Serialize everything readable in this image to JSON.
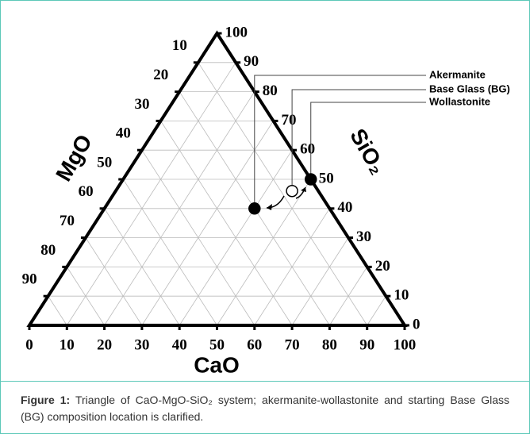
{
  "chart_data": {
    "type": "ternary",
    "axes": {
      "bottom": {
        "title": "CaO",
        "ticks": [
          0,
          10,
          20,
          30,
          40,
          50,
          60,
          70,
          80,
          90,
          100
        ]
      },
      "left": {
        "title": "MgO",
        "ticks": [
          10,
          20,
          30,
          40,
          50,
          60,
          70,
          80,
          90
        ]
      },
      "right": {
        "title": "SiO₂",
        "ticks": [
          0,
          10,
          20,
          30,
          40,
          50,
          60,
          70,
          80,
          90,
          100
        ]
      }
    },
    "grid": true,
    "color": "#000000",
    "points": [
      {
        "name": "Akermanite",
        "values": [
          40,
          20,
          40
        ],
        "filled": true
      },
      {
        "name": "Base Glass (BG)",
        "values": [
          47,
          7,
          46
        ],
        "filled": false
      },
      {
        "name": "Wollastonite",
        "values": [
          50,
          0,
          50
        ],
        "filled": true
      }
    ]
  },
  "caption": {
    "label": "Figure 1:",
    "text": "Triangle of CaO-MgO-SiO₂ system; akermanite-wollastonite and starting Base Glass (BG) composition location is clarified."
  }
}
